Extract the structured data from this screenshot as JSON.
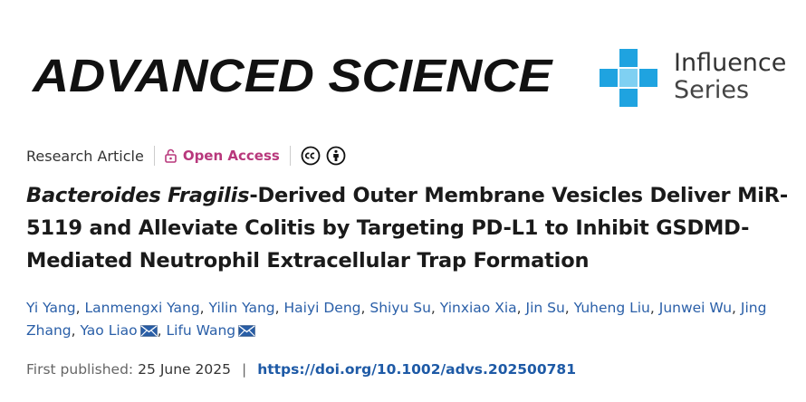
{
  "journal": {
    "name": "ADVANCED SCIENCE"
  },
  "series": {
    "line1": "Influence",
    "line2": "Series",
    "accent": "#1fa3e0"
  },
  "meta": {
    "article_type": "Research Article",
    "open_access": "Open Access",
    "oa_color": "#b8387c",
    "license_icons": [
      "creative-commons-icon",
      "attribution-icon"
    ]
  },
  "title": {
    "italic": "Bacteroides Fragilis",
    "rest": "-Derived Outer Membrane Vesicles Deliver MiR-5119 and Alleviate Colitis by Targeting PD-L1 to Inhibit GSDMD-Mediated Neutrophil Extracellular Trap Formation"
  },
  "authors": [
    {
      "name": "Yi Yang"
    },
    {
      "name": "Lanmengxi Yang"
    },
    {
      "name": "Yilin Yang"
    },
    {
      "name": "Haiyi Deng"
    },
    {
      "name": "Shiyu Su"
    },
    {
      "name": "Yinxiao Xia"
    },
    {
      "name": "Jin Su"
    },
    {
      "name": "Yuheng Liu"
    },
    {
      "name": "Junwei Wu"
    },
    {
      "name": "Jing Zhang"
    },
    {
      "name": "Yao Liao",
      "corresponding": true
    },
    {
      "name": "Lifu Wang",
      "corresponding": true
    }
  ],
  "publication": {
    "label": "First published:",
    "date": "25 June 2025",
    "doi": "https://doi.org/10.1002/advs.202500781",
    "link_color": "#1e5aa6"
  }
}
